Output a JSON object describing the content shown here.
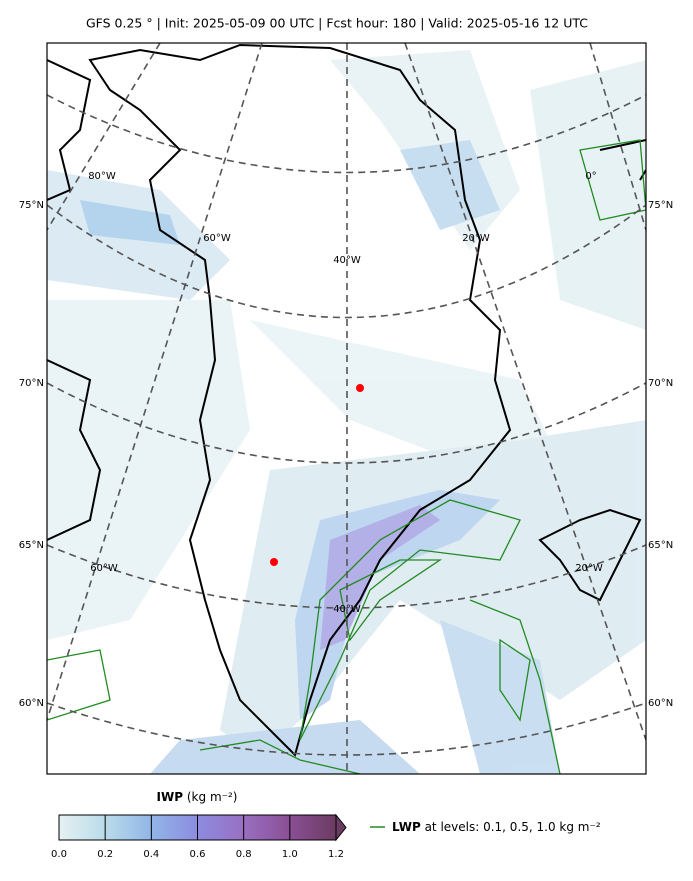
{
  "title": "GFS 0.25 °  |  Init: 2025-05-09 00 UTC  |  Fcst hour: 180  |  Valid: 2025-05-16 12 UTC",
  "map": {
    "lat_labels_left": [
      "75°N",
      "70°N",
      "65°N",
      "60°N"
    ],
    "lat_labels_right": [
      "75°N",
      "70°N",
      "65°N",
      "60°N"
    ],
    "lon_labels": [
      "80°W",
      "0°",
      "60°W",
      "40°W",
      "20°W",
      "60°W",
      "20°W",
      "40°W"
    ]
  },
  "colorbar": {
    "label_bold": "IWP",
    "label_unit": "(kg m⁻²)",
    "lim": [
      0,
      1.2
    ],
    "ticks": [
      {
        "value": 0,
        "label": "0.0"
      },
      0.2,
      0.4,
      0.6,
      0.8,
      {
        "value": 1,
        "label": "1.0"
      },
      1.2
    ],
    "colors": [
      "#e6f1f2",
      "#b9dcea",
      "#92b6e8",
      "#8c8ce0",
      "#9a6fc2",
      "#8a4f95",
      "#6b3c62"
    ]
  },
  "legend": {
    "label_bold": "LWP",
    "label_text": "at levels: 0.1, 0.5, 1.0  kg m⁻²",
    "color": "#228b22"
  }
}
